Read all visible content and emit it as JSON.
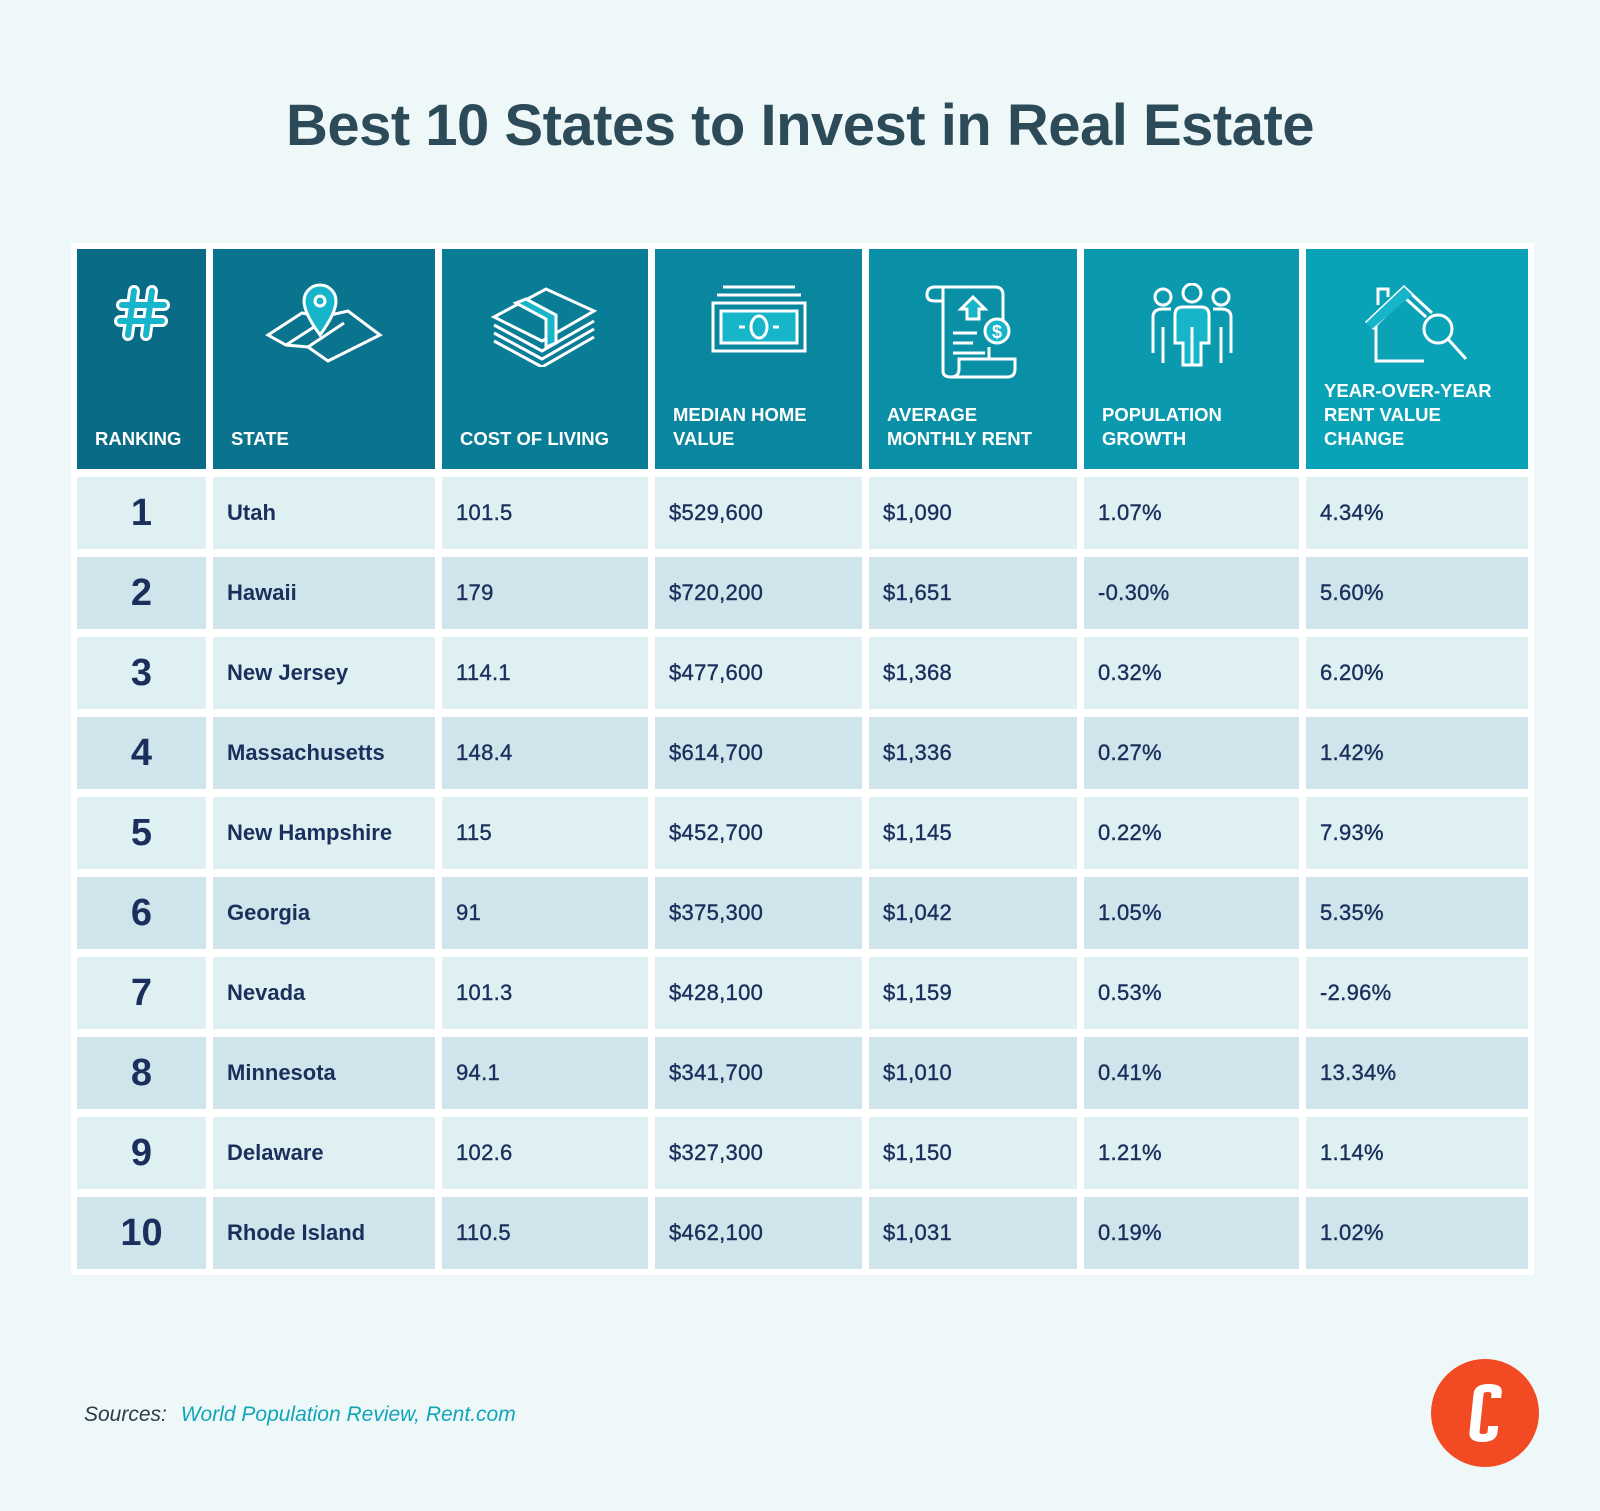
{
  "title": "Best 10 States to Invest in Real Estate",
  "columns": [
    {
      "label": "RANKING",
      "icon": "hash-icon"
    },
    {
      "label": "STATE",
      "icon": "map-pin-icon"
    },
    {
      "label": "COST OF LIVING",
      "icon": "money-stack-icon"
    },
    {
      "label": "MEDIAN HOME VALUE",
      "icon": "banknote-icon"
    },
    {
      "label": "AVERAGE MONTHLY RENT",
      "icon": "rent-document-icon"
    },
    {
      "label": "POPULATION GROWTH",
      "icon": "people-icon"
    },
    {
      "label": "YEAR-OVER-YEAR RENT VALUE CHANGE",
      "icon": "house-search-icon"
    }
  ],
  "rows": [
    [
      "1",
      "Utah",
      "101.5",
      "$529,600",
      "$1,090",
      "1.07%",
      "4.34%"
    ],
    [
      "2",
      "Hawaii",
      "179",
      "$720,200",
      "$1,651",
      "-0.30%",
      "5.60%"
    ],
    [
      "3",
      "New Jersey",
      "114.1",
      "$477,600",
      "$1,368",
      "0.32%",
      "6.20%"
    ],
    [
      "4",
      "Massachusetts",
      "148.4",
      "$614,700",
      "$1,336",
      "0.27%",
      "1.42%"
    ],
    [
      "5",
      "New Hampshire",
      "115",
      "$452,700",
      "$1,145",
      "0.22%",
      "7.93%"
    ],
    [
      "6",
      "Georgia",
      "91",
      "$375,300",
      "$1,042",
      "1.05%",
      "5.35%"
    ],
    [
      "7",
      "Nevada",
      "101.3",
      "$428,100",
      "$1,159",
      "0.53%",
      "-2.96%"
    ],
    [
      "8",
      "Minnesota",
      "94.1",
      "$341,700",
      "$1,010",
      "0.41%",
      "13.34%"
    ],
    [
      "9",
      "Delaware",
      "102.6",
      "$327,300",
      "$1,150",
      "1.21%",
      "1.14%"
    ],
    [
      "10",
      "Rhode Island",
      "110.5",
      "$462,100",
      "$1,031",
      "0.19%",
      "1.02%"
    ]
  ],
  "footer": {
    "sources_label": "Sources:",
    "sources": "World Population Review, Rent.com",
    "logo_letter": "C"
  },
  "colors": {
    "header_dark": "#0a6b86",
    "header_light": "#0aa2b6",
    "row_light": "#dff0f3",
    "row_dark": "#cfe5eb",
    "text": "#1b2f5c",
    "logo": "#f24a23",
    "accent": "#12a4b8"
  }
}
